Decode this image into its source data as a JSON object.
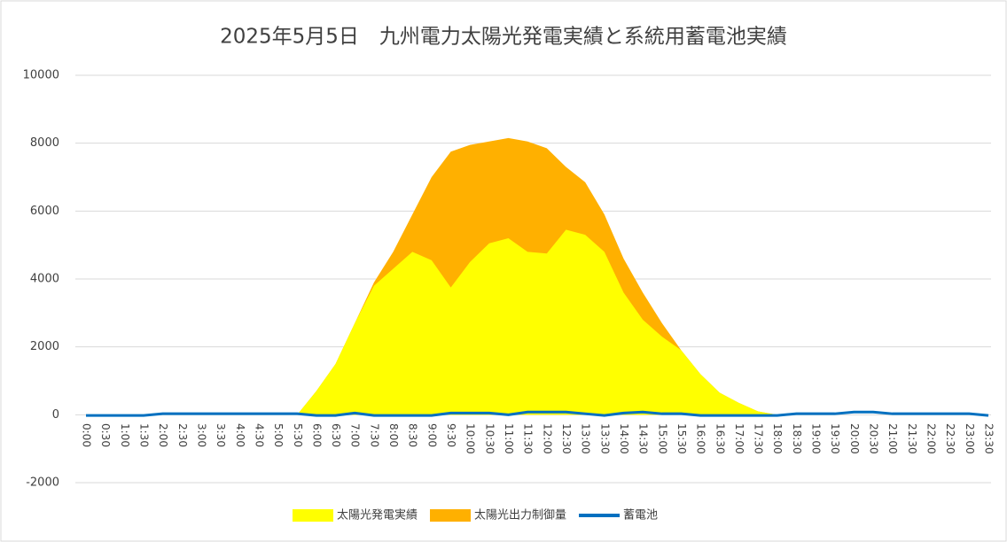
{
  "chart_data": {
    "type": "stacked-area-line",
    "title": "2025年5月5日　九州電力太陽光発電実績と系統用蓄電池実績",
    "categories": [
      "0:00",
      "0:30",
      "1:00",
      "1:30",
      "2:00",
      "2:30",
      "3:00",
      "3:30",
      "4:00",
      "4:30",
      "5:00",
      "5:30",
      "6:00",
      "6:30",
      "7:00",
      "7:30",
      "8:00",
      "8:30",
      "9:00",
      "9:30",
      "10:00",
      "10:30",
      "11:00",
      "11:30",
      "12:00",
      "12:30",
      "13:00",
      "13:30",
      "14:00",
      "14:30",
      "15:00",
      "15:30",
      "16:00",
      "16:30",
      "17:00",
      "17:30",
      "18:00",
      "18:30",
      "19:00",
      "19:30",
      "20:00",
      "20:30",
      "21:00",
      "21:30",
      "22:00",
      "22:30",
      "23:00",
      "23:30"
    ],
    "series": [
      {
        "name": "太陽光発電実績",
        "color": "#ffff00",
        "kind": "area",
        "values": [
          0,
          0,
          0,
          0,
          0,
          0,
          0,
          0,
          0,
          0,
          0,
          0,
          700,
          1500,
          2700,
          3800,
          4300,
          4800,
          4550,
          3750,
          4500,
          5050,
          5200,
          4800,
          4750,
          5450,
          5300,
          4800,
          3600,
          2800,
          2300,
          1900,
          1200,
          650,
          350,
          100,
          0,
          0,
          0,
          0,
          0,
          0,
          0,
          0,
          0,
          0,
          0,
          0
        ]
      },
      {
        "name": "太陽光出力制御量",
        "color": "#ffb000",
        "kind": "area",
        "values": [
          0,
          0,
          0,
          0,
          0,
          0,
          0,
          0,
          0,
          0,
          0,
          0,
          0,
          0,
          0,
          100,
          500,
          1100,
          2450,
          4000,
          3450,
          3000,
          2950,
          3250,
          3100,
          1850,
          1550,
          1100,
          1000,
          800,
          400,
          0,
          0,
          0,
          0,
          0,
          0,
          0,
          0,
          0,
          0,
          0,
          0,
          0,
          0,
          0,
          0,
          0
        ]
      },
      {
        "name": "蓄電池",
        "color": "#0070c0",
        "kind": "line",
        "values": [
          -20,
          -20,
          -20,
          -20,
          30,
          30,
          30,
          30,
          30,
          30,
          30,
          30,
          -20,
          -20,
          50,
          -20,
          -20,
          -20,
          -20,
          50,
          50,
          50,
          0,
          80,
          80,
          80,
          30,
          -20,
          50,
          80,
          30,
          30,
          -20,
          -20,
          -20,
          -20,
          -20,
          30,
          30,
          30,
          80,
          80,
          30,
          30,
          30,
          30,
          30,
          -20
        ]
      }
    ],
    "ylim": [
      -2000,
      10000
    ],
    "yticks": [
      -2000,
      0,
      2000,
      4000,
      6000,
      8000,
      10000
    ],
    "grid": true,
    "legend": "bottom"
  }
}
